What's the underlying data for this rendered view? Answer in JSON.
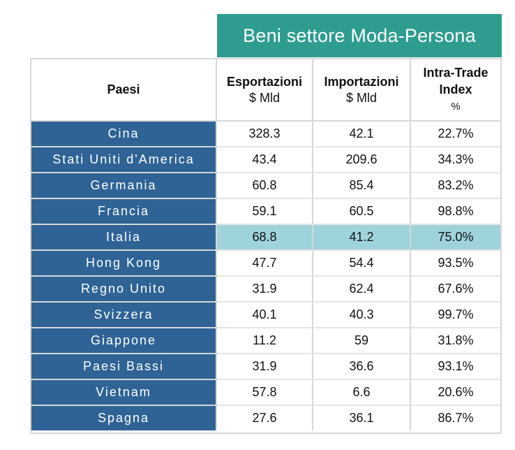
{
  "chart_data": {
    "type": "table",
    "title": "Beni settore Moda-Persona",
    "columns": [
      {
        "label": "Paesi",
        "unit": ""
      },
      {
        "label": "Esportazioni",
        "unit": "$ Mld"
      },
      {
        "label": "Importazioni",
        "unit": "$ Mld"
      },
      {
        "label": "Intra-Trade Index",
        "unit": "%"
      }
    ],
    "rows": [
      {
        "country": "Cina",
        "export": "328.3",
        "import": "42.1",
        "iti": "22.7%"
      },
      {
        "country": "Stati Uniti d'America",
        "export": "43.4",
        "import": "209.6",
        "iti": "34.3%"
      },
      {
        "country": "Germania",
        "export": "60.8",
        "import": "85.4",
        "iti": "83.2%"
      },
      {
        "country": "Francia",
        "export": "59.1",
        "import": "60.5",
        "iti": "98.8%"
      },
      {
        "country": "Italia",
        "export": "68.8",
        "import": "41.2",
        "iti": "75.0%",
        "highlight": true
      },
      {
        "country": "Hong Kong",
        "export": "47.7",
        "import": "54.4",
        "iti": "93.5%"
      },
      {
        "country": "Regno Unito",
        "export": "31.9",
        "import": "62.4",
        "iti": "67.6%"
      },
      {
        "country": "Svizzera",
        "export": "40.1",
        "import": "40.3",
        "iti": "99.7%"
      },
      {
        "country": "Giappone",
        "export": "11.2",
        "import": "59",
        "iti": "31.8%"
      },
      {
        "country": "Paesi Bassi",
        "export": "31.9",
        "import": "36.6",
        "iti": "93.1%"
      },
      {
        "country": "Vietnam",
        "export": "57.8",
        "import": "6.6",
        "iti": "20.6%"
      },
      {
        "country": "Spagna",
        "export": "27.6",
        "import": "36.1",
        "iti": "86.7%"
      }
    ]
  },
  "colors": {
    "title_bg": "#2e9d8f",
    "country_bg": "#2f6395",
    "highlight_bg": "#9fd3dc"
  }
}
